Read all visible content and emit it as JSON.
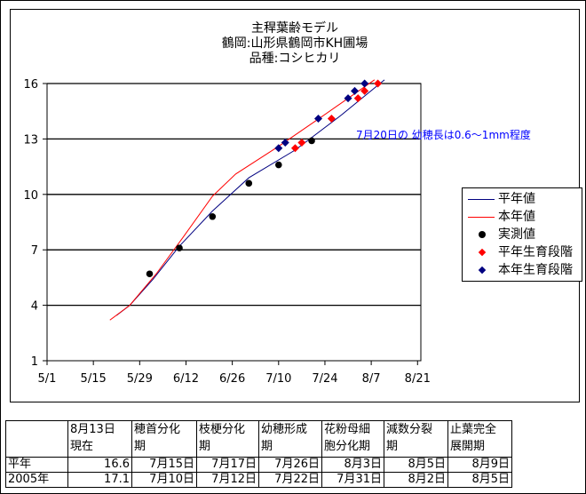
{
  "chart_data": {
    "type": "line",
    "title": [
      "主稈葉齢モデル",
      "鶴岡:山形県鶴岡市KH圃場",
      "品種:コシヒカリ"
    ],
    "xlabel": "",
    "ylabel": "",
    "xlim": [
      "5/1",
      "8/22"
    ],
    "ylim": [
      1,
      16
    ],
    "x_ticks": [
      "5/1",
      "5/15",
      "5/29",
      "6/12",
      "6/26",
      "7/10",
      "7/24",
      "8/7",
      "8/21"
    ],
    "y_ticks": [
      1,
      4,
      7,
      10,
      13,
      16
    ],
    "grid": "horizontal",
    "legend_position": "right",
    "annotation": "7月20日の 幼穂長は0.6～1mm程度",
    "series": [
      {
        "name": "平年値",
        "kind": "line",
        "color": "#000080",
        "points": [
          [
            "5/22",
            3.45
          ],
          [
            "5/26",
            4.0
          ],
          [
            "6/2",
            5.4
          ],
          [
            "6/10",
            7.2
          ],
          [
            "6/20",
            9.1
          ],
          [
            "7/1",
            10.9
          ],
          [
            "7/15",
            12.4
          ],
          [
            "7/29",
            14.3
          ],
          [
            "8/11",
            16.2
          ]
        ]
      },
      {
        "name": "本年値",
        "kind": "line",
        "color": "#ff0000",
        "points": [
          [
            "5/20",
            3.2
          ],
          [
            "5/26",
            4.0
          ],
          [
            "6/3",
            5.7
          ],
          [
            "6/11",
            7.65
          ],
          [
            "6/20",
            9.9
          ],
          [
            "6/27",
            11.1
          ],
          [
            "7/10",
            12.6
          ],
          [
            "7/23",
            14.2
          ],
          [
            "8/8",
            16.2
          ]
        ]
      },
      {
        "name": "実測値",
        "kind": "circle",
        "color": "#000000",
        "points": [
          [
            "6/1",
            5.7
          ],
          [
            "6/10",
            7.1
          ],
          [
            "6/20",
            8.8
          ],
          [
            "7/1",
            10.6
          ],
          [
            "7/10",
            11.6
          ],
          [
            "7/20",
            12.9
          ]
        ]
      },
      {
        "name": "平年生育段階",
        "kind": "diamond",
        "color": "#ff0000",
        "points": [
          [
            "7/15",
            12.5
          ],
          [
            "7/17",
            12.8
          ],
          [
            "7/26",
            14.1
          ],
          [
            "8/3",
            15.2
          ],
          [
            "8/5",
            15.6
          ],
          [
            "8/9",
            16.0
          ]
        ]
      },
      {
        "name": "本年生育段階",
        "kind": "diamond",
        "color": "#000080",
        "points": [
          [
            "7/10",
            12.5
          ],
          [
            "7/12",
            12.8
          ],
          [
            "7/22",
            14.1
          ],
          [
            "7/31",
            15.2
          ],
          [
            "8/2",
            15.6
          ],
          [
            "8/5",
            16.0
          ]
        ]
      }
    ]
  },
  "table": {
    "headers": [
      "",
      "8月13日\n現在",
      "穂首分化\n期",
      "枝梗分化\n期",
      "幼穂形成\n期",
      "花粉母細\n胞分化期",
      "減数分裂\n期",
      "止葉完全\n展開期"
    ],
    "rows": [
      [
        "平年",
        "16.6",
        "7月15日",
        "7月17日",
        "7月26日",
        "8月3日",
        "8月5日",
        "8月9日"
      ],
      [
        "2005年",
        "17.1",
        "7月10日",
        "7月12日",
        "7月22日",
        "7月31日",
        "8月2日",
        "8月5日"
      ]
    ]
  }
}
